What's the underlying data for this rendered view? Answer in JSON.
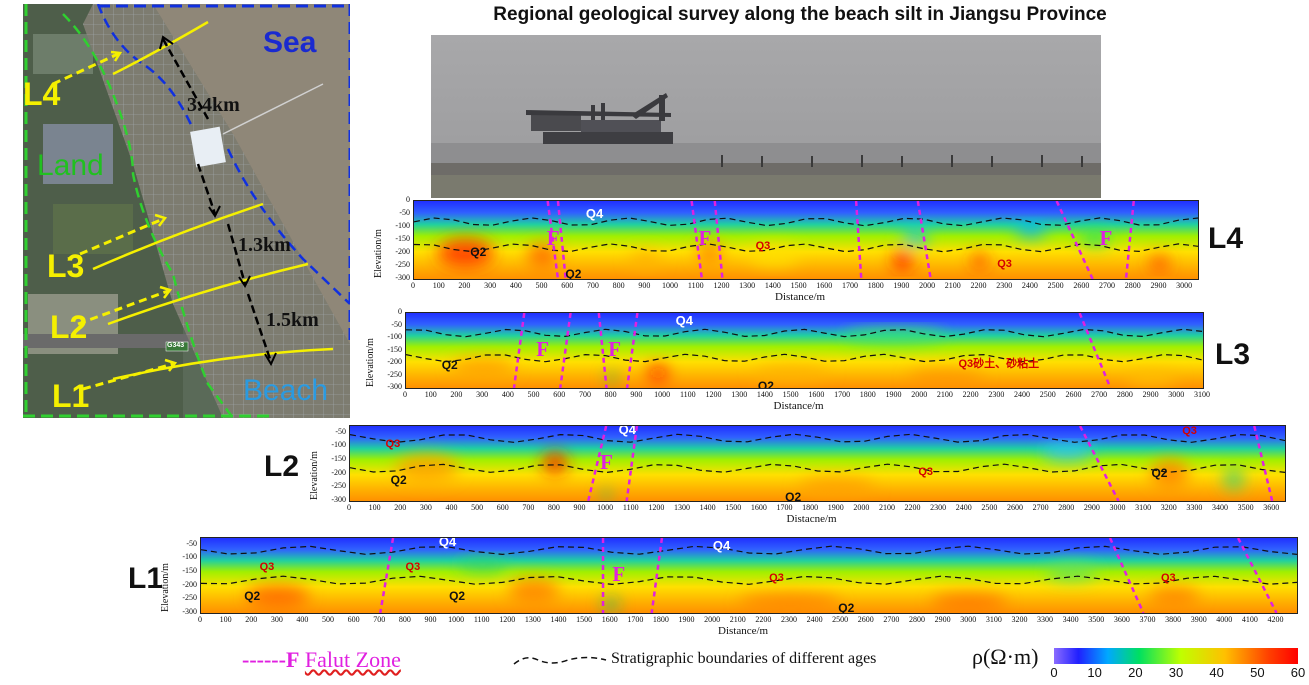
{
  "title": "Regional geological survey along the beach silt in Jiangsu Province",
  "map": {
    "labels": {
      "sea": "Sea",
      "land": "Land",
      "beach": "Beach",
      "road": "G343"
    },
    "lines": [
      "L4",
      "L3",
      "L2",
      "L1"
    ],
    "distances": [
      "3.4km",
      "1.3km",
      "1.5km"
    ]
  },
  "profiles": [
    {
      "id": "L4",
      "ylabel": "Elevation/m",
      "yticks": [
        "0",
        "-50",
        "-100",
        "-150",
        "-200",
        "-250",
        "-300"
      ],
      "xticks": [
        "0",
        "100",
        "200",
        "300",
        "400",
        "500",
        "600",
        "700",
        "800",
        "900",
        "1000",
        "1100",
        "1200",
        "1300",
        "1400",
        "1500",
        "1600",
        "1700",
        "1800",
        "1900",
        "2000",
        "2100",
        "2200",
        "2300",
        "2400",
        "2500",
        "2600",
        "2700",
        "2800",
        "2900",
        "3000"
      ],
      "xlabel": "Distance/m",
      "xmax": 3050,
      "units": [
        {
          "text": "Q4",
          "kind": "zone",
          "x": 700,
          "y": -50
        },
        {
          "text": "Q2",
          "kind": "q",
          "x": 250,
          "y": -200
        },
        {
          "text": "Q2",
          "kind": "q",
          "x": 620,
          "y": -285
        },
        {
          "text": "Q3",
          "kind": "q3",
          "x": 1360,
          "y": -180
        },
        {
          "text": "Q3",
          "kind": "q3",
          "x": 2300,
          "y": -250
        }
      ],
      "faults_label": [
        "F",
        "F",
        "F"
      ],
      "fault_label_x": [
        540,
        1130,
        2690
      ]
    },
    {
      "id": "L3",
      "ylabel": "Elevation/m",
      "yticks": [
        "0",
        "-50",
        "-100",
        "-150",
        "-200",
        "-250",
        "-300"
      ],
      "xticks": [
        "0",
        "100",
        "200",
        "300",
        "400",
        "500",
        "600",
        "700",
        "800",
        "900",
        "1000",
        "1100",
        "1200",
        "1300",
        "1400",
        "1500",
        "1600",
        "1700",
        "1800",
        "1900",
        "2000",
        "2100",
        "2200",
        "2300",
        "2400",
        "2500",
        "2600",
        "2700",
        "2800",
        "2900",
        "3000",
        "3100"
      ],
      "xlabel": "Distance/m",
      "xmax": 3100,
      "units": [
        {
          "text": "Q4",
          "kind": "zone",
          "x": 1080,
          "y": -30
        },
        {
          "text": "Q2",
          "kind": "q",
          "x": 170,
          "y": -210
        },
        {
          "text": "Q3砂土、砂粘土",
          "kind": "q3",
          "x": 2180,
          "y": -200
        },
        {
          "text": "Q2",
          "kind": "q",
          "x": 1400,
          "y": -295
        }
      ],
      "faults_label": [
        "F",
        "F"
      ],
      "fault_label_x": [
        530,
        810
      ]
    },
    {
      "id": "L2",
      "ylabel": "Elevation/m",
      "yticks": [
        "-50",
        "-100",
        "-150",
        "-200",
        "-250",
        "-300"
      ],
      "xticks": [
        "0",
        "100",
        "200",
        "300",
        "400",
        "500",
        "600",
        "700",
        "800",
        "900",
        "1000",
        "1100",
        "1200",
        "1300",
        "1400",
        "1500",
        "1600",
        "1700",
        "1800",
        "1900",
        "2000",
        "2100",
        "2200",
        "2300",
        "2400",
        "2500",
        "2600",
        "2700",
        "2800",
        "2900",
        "3000",
        "3100",
        "3200",
        "3300",
        "3400",
        "3500",
        "3600"
      ],
      "xlabel": "Distacne/m",
      "xmax": 3650,
      "units": [
        {
          "text": "Q4",
          "kind": "zone",
          "x": 1080,
          "y": -40
        },
        {
          "text": "Q3",
          "kind": "q3",
          "x": 170,
          "y": -100
        },
        {
          "text": "Q2",
          "kind": "q",
          "x": 190,
          "y": -225
        },
        {
          "text": "Q3",
          "kind": "q3",
          "x": 2250,
          "y": -200
        },
        {
          "text": "Q2",
          "kind": "q",
          "x": 1730,
          "y": -290
        },
        {
          "text": "Q3",
          "kind": "q3",
          "x": 3280,
          "y": -50
        },
        {
          "text": "Q2",
          "kind": "q",
          "x": 3160,
          "y": -200
        }
      ],
      "faults_label": [
        "F"
      ],
      "fault_label_x": [
        1000
      ]
    },
    {
      "id": "L1",
      "ylabel": "Elevation/m",
      "yticks": [
        "-50",
        "-100",
        "-150",
        "-200",
        "-250",
        "-300"
      ],
      "xticks": [
        "0",
        "100",
        "200",
        "300",
        "400",
        "500",
        "600",
        "700",
        "800",
        "900",
        "1000",
        "1100",
        "1200",
        "1300",
        "1400",
        "1500",
        "1600",
        "1700",
        "1800",
        "1900",
        "2000",
        "2100",
        "2200",
        "2300",
        "2400",
        "2500",
        "2600",
        "2700",
        "2800",
        "2900",
        "3000",
        "3100",
        "3200",
        "3300",
        "3400",
        "3500",
        "3600",
        "3700",
        "3800",
        "3900",
        "4000",
        "4100",
        "4200"
      ],
      "xlabel": "Distance/m",
      "xmax": 4280,
      "units": [
        {
          "text": "Q4",
          "kind": "zone",
          "x": 960,
          "y": -40
        },
        {
          "text": "Q4",
          "kind": "zone",
          "x": 2030,
          "y": -55
        },
        {
          "text": "Q3",
          "kind": "q3",
          "x": 260,
          "y": -140
        },
        {
          "text": "Q3",
          "kind": "q3",
          "x": 830,
          "y": -140
        },
        {
          "text": "Q3",
          "kind": "q3",
          "x": 2250,
          "y": -180
        },
        {
          "text": "Q3",
          "kind": "q3",
          "x": 3780,
          "y": -180
        },
        {
          "text": "Q2",
          "kind": "q",
          "x": 200,
          "y": -240
        },
        {
          "text": "Q2",
          "kind": "q",
          "x": 1000,
          "y": -240
        },
        {
          "text": "Q2",
          "kind": "q",
          "x": 2520,
          "y": -285
        }
      ],
      "faults_label": [
        "F"
      ],
      "fault_label_x": [
        1630
      ]
    }
  ],
  "legend": {
    "fault_dash": "------",
    "fault_f": "F",
    "fault_text": "Falut Zone",
    "strat_text": "Stratigraphic boundaries of different ages",
    "colorbar_title": "ρ(Ω·m)",
    "colorbar_ticks": [
      "0",
      "10",
      "20",
      "30",
      "40",
      "50",
      "60"
    ]
  },
  "colors": {
    "fault": "#e020e0",
    "map_border_blue": "#1030e0",
    "map_border_green": "#30d030",
    "survey_line": "#f5f000"
  }
}
